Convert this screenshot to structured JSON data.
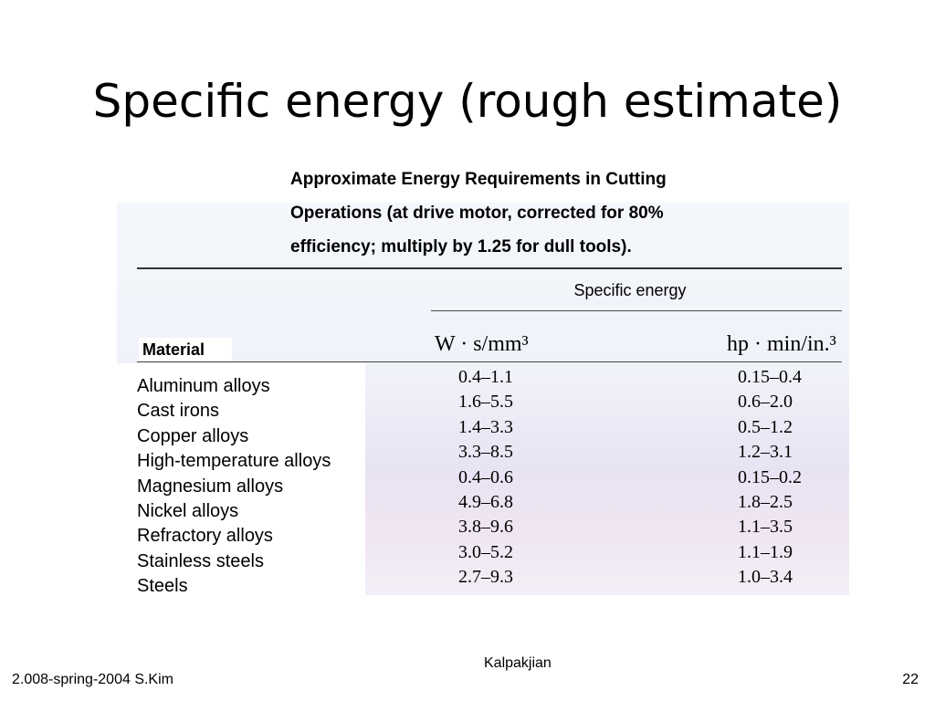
{
  "slide": {
    "title": "Specific energy (rough estimate)",
    "caption_lines": [
      "Approximate Energy Requirements in Cutting",
      "Operations (at drive motor, corrected for 80%",
      "efficiency; multiply by 1.25 for dull tools)."
    ]
  },
  "table": {
    "specific_energy_header": "Specific energy",
    "material_header": "Material",
    "unit_si": "W · s/mm³",
    "unit_imperial": "hp · min/in.³",
    "rows": [
      {
        "material": "Aluminum alloys",
        "si": "0.4–1.1",
        "imperial": "0.15–0.4"
      },
      {
        "material": "Cast irons",
        "si": "1.6–5.5",
        "imperial": "0.6–2.0"
      },
      {
        "material": "Copper alloys",
        "si": "1.4–3.3",
        "imperial": "0.5–1.2"
      },
      {
        "material": "High-temperature alloys",
        "si": "3.3–8.5",
        "imperial": "1.2–3.1"
      },
      {
        "material": "Magnesium alloys",
        "si": "0.4–0.6",
        "imperial": "0.15–0.2"
      },
      {
        "material": "Nickel alloys",
        "si": "4.9–6.8",
        "imperial": "1.8–2.5"
      },
      {
        "material": "Refractory alloys",
        "si": "3.8–9.6",
        "imperial": "1.1–3.5"
      },
      {
        "material": "Stainless steels",
        "si": "3.0–5.2",
        "imperial": "1.1–1.9"
      },
      {
        "material": "Steels",
        "si": "2.7–9.3",
        "imperial": "1.0–3.4"
      }
    ]
  },
  "footer": {
    "left": "2.008-spring-2004  S.Kim",
    "center": "Kalpakjian",
    "page": "22"
  }
}
